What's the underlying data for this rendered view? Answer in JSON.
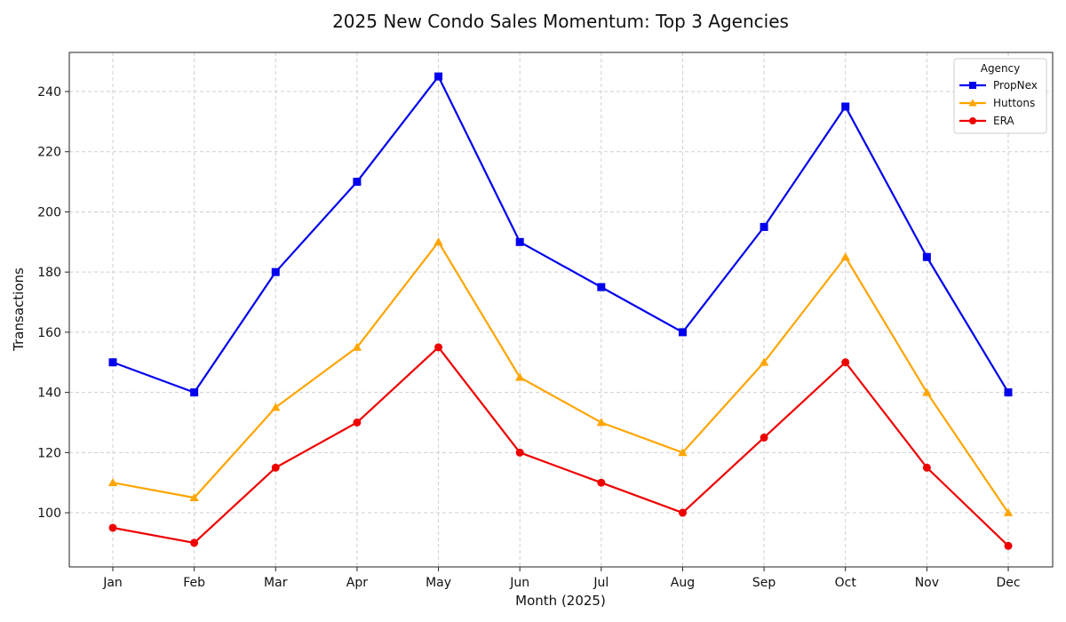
{
  "chart_data": {
    "type": "line",
    "title": "2025 New Condo Sales Momentum: Top 3 Agencies",
    "xlabel": "Month (2025)",
    "ylabel": "Transactions",
    "categories": [
      "Jan",
      "Feb",
      "Mar",
      "Apr",
      "May",
      "Jun",
      "Jul",
      "Aug",
      "Sep",
      "Oct",
      "Nov",
      "Dec"
    ],
    "ylim": [
      82,
      253
    ],
    "yticks": [
      100,
      120,
      140,
      160,
      180,
      200,
      220,
      240
    ],
    "grid": true,
    "legend": {
      "title": "Agency",
      "placement": "top-right"
    },
    "series": [
      {
        "name": "PropNex",
        "color": "#0000ee",
        "marker": "square",
        "values": [
          150,
          140,
          180,
          210,
          245,
          190,
          175,
          160,
          195,
          235,
          185,
          140
        ]
      },
      {
        "name": "Huttons",
        "color": "#ffa500",
        "marker": "triangle",
        "values": [
          110,
          105,
          135,
          155,
          190,
          145,
          130,
          120,
          150,
          185,
          140,
          100
        ]
      },
      {
        "name": "ERA",
        "color": "#ee0000",
        "marker": "circle",
        "values": [
          95,
          90,
          115,
          130,
          155,
          120,
          110,
          100,
          125,
          150,
          115,
          89
        ]
      }
    ]
  }
}
